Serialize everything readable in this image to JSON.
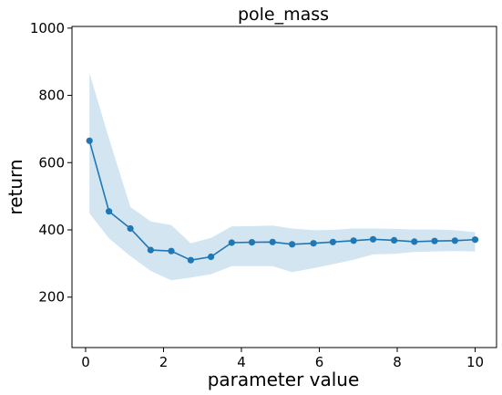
{
  "chart_data": {
    "type": "line",
    "title": "pole_mass",
    "xlabel": "parameter value",
    "ylabel": "return",
    "xlim": [
      -0.35,
      10.55
    ],
    "ylim": [
      50,
      1005
    ],
    "xticks": [
      0,
      2,
      4,
      6,
      8,
      10
    ],
    "yticks": [
      200,
      400,
      600,
      800,
      1000
    ],
    "grid": false,
    "colors": {
      "line": "#1f77b4",
      "band": "#a6cce2"
    },
    "series": [
      {
        "x": [
          0.1,
          0.6,
          1.15,
          1.67,
          2.2,
          2.7,
          3.22,
          3.75,
          4.27,
          4.8,
          5.3,
          5.85,
          6.35,
          6.88,
          7.38,
          7.92,
          8.44,
          8.96,
          9.48,
          10.0
        ],
        "y": [
          665,
          455,
          404,
          340,
          337,
          310,
          320,
          362,
          363,
          364,
          357,
          360,
          364,
          368,
          372,
          369,
          365,
          367,
          368,
          371
        ],
        "lower": [
          449,
          375,
          322,
          278,
          250,
          258,
          268,
          292,
          292,
          292,
          274,
          286,
          298,
          311,
          327,
          329,
          334,
          336,
          337,
          336
        ],
        "upper": [
          866,
          672,
          468,
          425,
          414,
          360,
          376,
          410,
          411,
          413,
          404,
          399,
          400,
          404,
          404,
          403,
          401,
          401,
          399,
          393
        ]
      }
    ]
  }
}
